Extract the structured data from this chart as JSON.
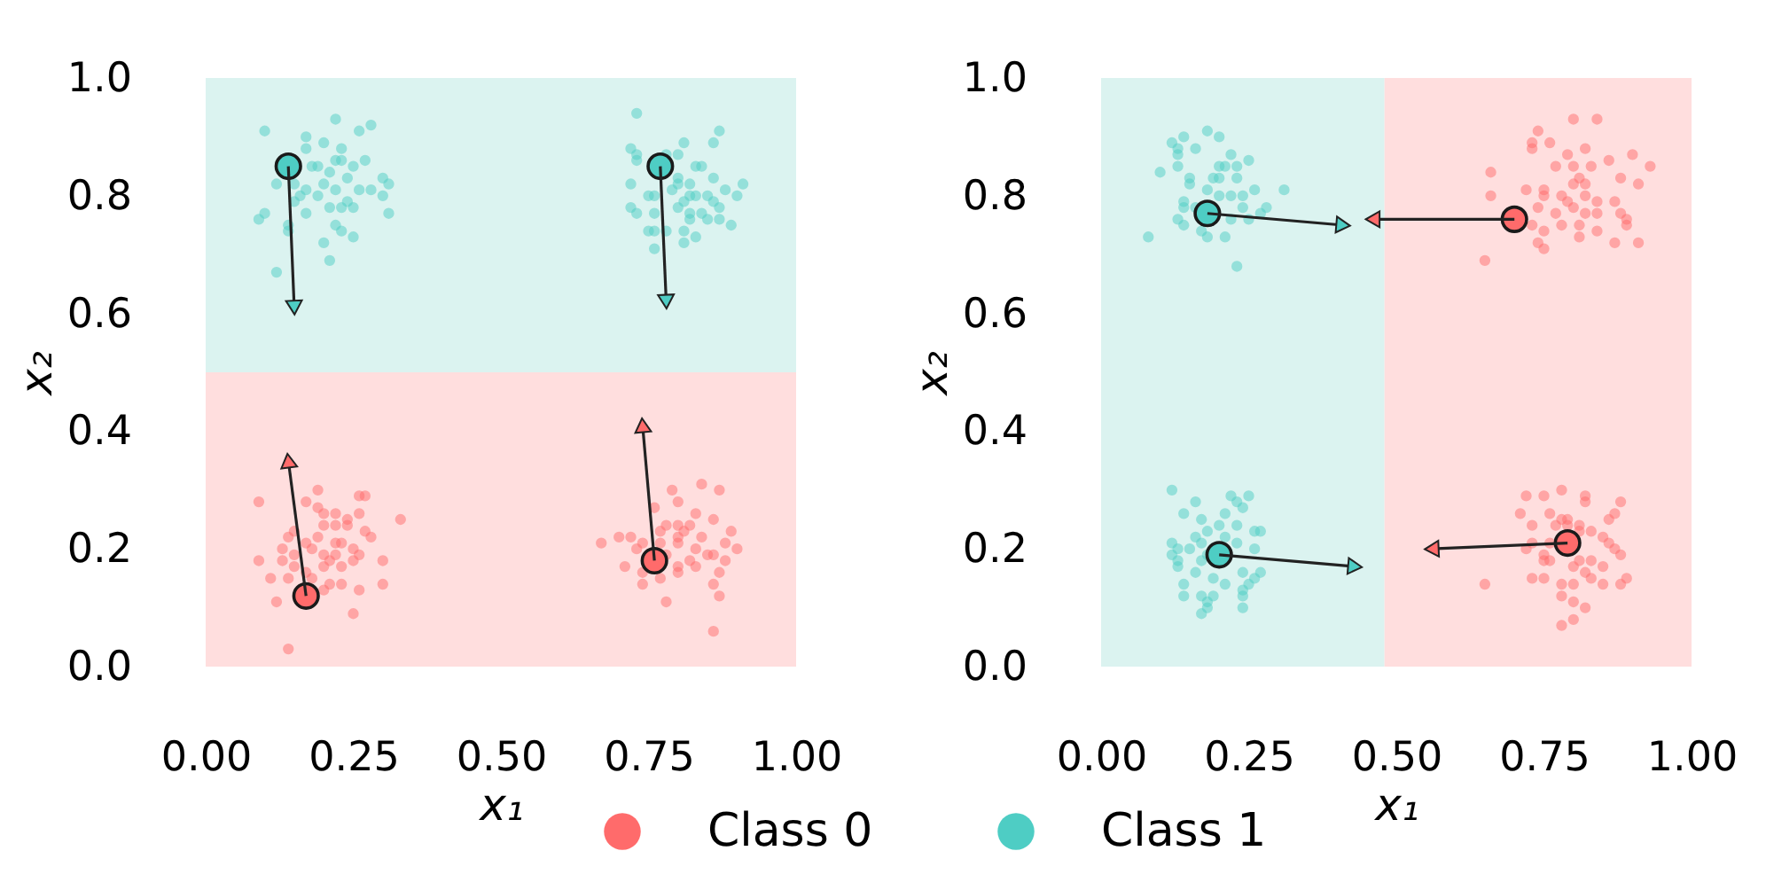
{
  "chart_data": [
    {
      "type": "scatter",
      "xlabel": "x₁",
      "ylabel": "x₂",
      "xlim": [
        0,
        1
      ],
      "ylim": [
        0,
        1
      ],
      "xticks": [
        {
          "value": 0,
          "label": "0.00"
        },
        {
          "value": 0.25,
          "label": "0.25"
        },
        {
          "value": 0.5,
          "label": "0.50"
        },
        {
          "value": 0.75,
          "label": "0.75"
        },
        {
          "value": 1,
          "label": "1.00"
        }
      ],
      "yticks": [
        {
          "value": 0,
          "label": "0.0"
        },
        {
          "value": 0.2,
          "label": "0.2"
        },
        {
          "value": 0.4,
          "label": "0.4"
        },
        {
          "value": 0.6,
          "label": "0.6"
        },
        {
          "value": 0.8,
          "label": "0.8"
        },
        {
          "value": 1,
          "label": "1.0"
        }
      ],
      "grid": false,
      "legend": "bottom",
      "marker": "circle",
      "bands": [
        {
          "axis": "y",
          "from": 0,
          "to": 0.5,
          "color": "#ffdede"
        },
        {
          "axis": "y",
          "from": 0.5,
          "to": 1,
          "color": "#dbf3f0"
        }
      ],
      "series": [
        {
          "name": "Class 0",
          "color": "#ff6b6b",
          "x": [
            0.09,
            0.17,
            0.19,
            0.19,
            0.2,
            0.22,
            0.24,
            0.26,
            0.27,
            0.26,
            0.33,
            0.15,
            0.2,
            0.22,
            0.24,
            0.27,
            0.28,
            0.14,
            0.17,
            0.19,
            0.22,
            0.23,
            0.25,
            0.13,
            0.18,
            0.2,
            0.22,
            0.25,
            0.26,
            0.3,
            0.09,
            0.13,
            0.15,
            0.17,
            0.2,
            0.23,
            0.11,
            0.14,
            0.18,
            0.21,
            0.23,
            0.3,
            0.12,
            0.2,
            0.26,
            0.25,
            0.14,
            0.15,
            0.21,
            0.79,
            0.84,
            0.87,
            0.8,
            0.76,
            0.83,
            0.86,
            0.78,
            0.8,
            0.82,
            0.67,
            0.7,
            0.72,
            0.74,
            0.77,
            0.8,
            0.81,
            0.84,
            0.89,
            0.88,
            0.9,
            0.77,
            0.8,
            0.83,
            0.85,
            0.86,
            0.73,
            0.71,
            0.74,
            0.8,
            0.82,
            0.88,
            0.87,
            0.74,
            0.77,
            0.8,
            0.83,
            0.86,
            0.87,
            0.78,
            0.86,
            0.78
          ],
          "values": [
            0.28,
            0.28,
            0.3,
            0.27,
            0.26,
            0.26,
            0.25,
            0.29,
            0.29,
            0.26,
            0.25,
            0.23,
            0.24,
            0.24,
            0.24,
            0.23,
            0.22,
            0.22,
            0.21,
            0.22,
            0.21,
            0.21,
            0.2,
            0.2,
            0.2,
            0.19,
            0.19,
            0.18,
            0.19,
            0.18,
            0.18,
            0.18,
            0.17,
            0.16,
            0.17,
            0.17,
            0.15,
            0.15,
            0.15,
            0.14,
            0.14,
            0.14,
            0.11,
            0.13,
            0.13,
            0.09,
            0.03,
            0.19,
            0.18,
            0.3,
            0.31,
            0.3,
            0.28,
            0.27,
            0.26,
            0.25,
            0.24,
            0.24,
            0.24,
            0.21,
            0.22,
            0.22,
            0.21,
            0.23,
            0.22,
            0.23,
            0.22,
            0.23,
            0.21,
            0.2,
            0.21,
            0.21,
            0.2,
            0.19,
            0.19,
            0.2,
            0.17,
            0.16,
            0.17,
            0.18,
            0.18,
            0.16,
            0.14,
            0.15,
            0.16,
            0.17,
            0.14,
            0.12,
            0.11,
            0.06,
            0.19
          ]
        },
        {
          "name": "Class 1",
          "color": "#4ecdc4",
          "x": [
            0.1,
            0.22,
            0.28,
            0.26,
            0.17,
            0.2,
            0.17,
            0.23,
            0.27,
            0.18,
            0.22,
            0.23,
            0.25,
            0.12,
            0.19,
            0.21,
            0.24,
            0.3,
            0.31,
            0.15,
            0.17,
            0.2,
            0.22,
            0.26,
            0.28,
            0.3,
            0.1,
            0.09,
            0.15,
            0.17,
            0.19,
            0.21,
            0.23,
            0.25,
            0.31,
            0.14,
            0.14,
            0.2,
            0.23,
            0.25,
            0.21,
            0.12,
            0.22,
            0.24,
            0.16,
            0.73,
            0.87,
            0.86,
            0.81,
            0.72,
            0.73,
            0.8,
            0.78,
            0.73,
            0.83,
            0.84,
            0.86,
            0.91,
            0.72,
            0.8,
            0.8,
            0.79,
            0.82,
            0.88,
            0.82,
            0.83,
            0.85,
            0.86,
            0.9,
            0.75,
            0.76,
            0.81,
            0.82,
            0.84,
            0.87,
            0.72,
            0.73,
            0.76,
            0.8,
            0.82,
            0.85,
            0.87,
            0.89,
            0.75,
            0.76,
            0.78,
            0.81,
            0.83,
            0.81,
            0.76
          ],
          "values": [
            0.91,
            0.93,
            0.92,
            0.91,
            0.9,
            0.89,
            0.88,
            0.88,
            0.86,
            0.85,
            0.86,
            0.86,
            0.85,
            0.82,
            0.85,
            0.84,
            0.83,
            0.83,
            0.82,
            0.82,
            0.81,
            0.82,
            0.81,
            0.81,
            0.81,
            0.8,
            0.77,
            0.76,
            0.79,
            0.77,
            0.8,
            0.78,
            0.78,
            0.78,
            0.77,
            0.75,
            0.74,
            0.72,
            0.74,
            0.73,
            0.69,
            0.67,
            0.75,
            0.79,
            0.8,
            0.94,
            0.91,
            0.89,
            0.89,
            0.88,
            0.87,
            0.87,
            0.87,
            0.86,
            0.85,
            0.85,
            0.83,
            0.82,
            0.82,
            0.83,
            0.82,
            0.81,
            0.82,
            0.81,
            0.8,
            0.8,
            0.8,
            0.79,
            0.8,
            0.8,
            0.8,
            0.79,
            0.77,
            0.77,
            0.78,
            0.78,
            0.77,
            0.77,
            0.78,
            0.76,
            0.76,
            0.76,
            0.75,
            0.74,
            0.74,
            0.74,
            0.74,
            0.73,
            0.72,
            0.71
          ]
        },
        {
          "type": "bubble",
          "x": [
            0.17,
            0.76,
            0.14,
            0.77
          ],
          "values": [
            0.12,
            0.18,
            0.85,
            0.85
          ],
          "sizes": [
            1,
            1,
            1,
            1
          ],
          "colors": [
            "#ff6b6b",
            "#ff6b6b",
            "#4ecdc4",
            "#4ecdc4"
          ]
        },
        {
          "type": "line",
          "color": "#222222",
          "marker": "triangle",
          "colors": [
            null,
            "#4ecdc4"
          ],
          "x": [
            0.14,
            0.15
          ],
          "values": [
            0.85,
            0.61
          ]
        },
        {
          "type": "line",
          "color": "#222222",
          "marker": "triangle",
          "colors": [
            null,
            "#4ecdc4"
          ],
          "x": [
            0.77,
            0.78
          ],
          "values": [
            0.85,
            0.62
          ]
        },
        {
          "type": "line",
          "color": "#222222",
          "marker": "triangle",
          "colors": [
            null,
            "#ff6b6b"
          ],
          "x": [
            0.17,
            0.14
          ],
          "values": [
            0.12,
            0.35
          ]
        },
        {
          "type": "line",
          "color": "#222222",
          "marker": "triangle",
          "colors": [
            null,
            "#ff6b6b"
          ],
          "x": [
            0.76,
            0.74
          ],
          "values": [
            0.18,
            0.41
          ]
        }
      ]
    },
    {
      "type": "scatter",
      "xlabel": "x₁",
      "ylabel": "x₂",
      "xlim": [
        0,
        1
      ],
      "ylim": [
        0,
        1
      ],
      "xticks": [
        {
          "value": 0,
          "label": "0.00"
        },
        {
          "value": 0.25,
          "label": "0.25"
        },
        {
          "value": 0.5,
          "label": "0.50"
        },
        {
          "value": 0.75,
          "label": "0.75"
        },
        {
          "value": 1,
          "label": "1.00"
        }
      ],
      "yticks": [
        {
          "value": 0,
          "label": "0.0"
        },
        {
          "value": 0.2,
          "label": "0.2"
        },
        {
          "value": 0.4,
          "label": "0.4"
        },
        {
          "value": 0.6,
          "label": "0.6"
        },
        {
          "value": 0.8,
          "label": "0.8"
        },
        {
          "value": 1,
          "label": "1.0"
        }
      ],
      "grid": false,
      "marker": "circle",
      "bands": [
        {
          "axis": "x",
          "from": 0,
          "to": 0.48,
          "color": "#dbf3f0"
        },
        {
          "axis": "x",
          "from": 0.48,
          "to": 1,
          "color": "#ffdede"
        }
      ],
      "series": [
        {
          "color": "#ff6b6b",
          "x": [
            0.8,
            0.84,
            0.74,
            0.73,
            0.73,
            0.76,
            0.82,
            0.79,
            0.9,
            0.66,
            0.77,
            0.8,
            0.83,
            0.86,
            0.93,
            0.81,
            0.82,
            0.88,
            0.91,
            0.66,
            0.72,
            0.75,
            0.75,
            0.78,
            0.79,
            0.82,
            0.84,
            0.87,
            0.74,
            0.77,
            0.8,
            0.82,
            0.84,
            0.88,
            0.89,
            0.73,
            0.75,
            0.78,
            0.81,
            0.84,
            0.89,
            0.81,
            0.91,
            0.87,
            0.74,
            0.75,
            0.65,
            0.8,
            0.78,
            0.72,
            0.75,
            0.82,
            0.82,
            0.88,
            0.71,
            0.86,
            0.87,
            0.76,
            0.78,
            0.79,
            0.73,
            0.77,
            0.79,
            0.81,
            0.81,
            0.83,
            0.85,
            0.86,
            0.87,
            0.73,
            0.76,
            0.72,
            0.75,
            0.75,
            0.76,
            0.81,
            0.83,
            0.85,
            0.8,
            0.82,
            0.83,
            0.73,
            0.75,
            0.78,
            0.8,
            0.85,
            0.88,
            0.89,
            0.78,
            0.8,
            0.82,
            0.78,
            0.8,
            0.65,
            0.88
          ],
          "values": [
            0.93,
            0.93,
            0.91,
            0.89,
            0.88,
            0.89,
            0.88,
            0.87,
            0.87,
            0.84,
            0.85,
            0.85,
            0.85,
            0.86,
            0.85,
            0.83,
            0.82,
            0.83,
            0.82,
            0.8,
            0.81,
            0.81,
            0.8,
            0.8,
            0.79,
            0.8,
            0.79,
            0.79,
            0.78,
            0.77,
            0.78,
            0.77,
            0.77,
            0.77,
            0.76,
            0.75,
            0.74,
            0.75,
            0.75,
            0.74,
            0.75,
            0.73,
            0.72,
            0.72,
            0.72,
            0.71,
            0.69,
            0.82,
            0.3,
            0.29,
            0.29,
            0.29,
            0.28,
            0.28,
            0.26,
            0.25,
            0.26,
            0.26,
            0.25,
            0.25,
            0.24,
            0.24,
            0.24,
            0.24,
            0.23,
            0.23,
            0.22,
            0.21,
            0.2,
            0.21,
            0.21,
            0.2,
            0.19,
            0.18,
            0.18,
            0.18,
            0.18,
            0.17,
            0.17,
            0.16,
            0.15,
            0.15,
            0.15,
            0.14,
            0.14,
            0.14,
            0.14,
            0.15,
            0.12,
            0.11,
            0.1,
            0.07,
            0.08,
            0.14,
            0.19
          ]
        },
        {
          "color": "#4ecdc4",
          "x": [
            0.14,
            0.18,
            0.2,
            0.12,
            0.13,
            0.16,
            0.13,
            0.13,
            0.1,
            0.15,
            0.22,
            0.2,
            0.21,
            0.23,
            0.25,
            0.19,
            0.2,
            0.23,
            0.26,
            0.31,
            0.15,
            0.18,
            0.2,
            0.24,
            0.14,
            0.16,
            0.22,
            0.24,
            0.28,
            0.27,
            0.13,
            0.14,
            0.17,
            0.18,
            0.21,
            0.22,
            0.25,
            0.08,
            0.23,
            0.14,
            0.12,
            0.16,
            0.22,
            0.23,
            0.25,
            0.14,
            0.21,
            0.17,
            0.2,
            0.24,
            0.23,
            0.26,
            0.27,
            0.16,
            0.18,
            0.21,
            0.23,
            0.12,
            0.13,
            0.15,
            0.17,
            0.26,
            0.12,
            0.13,
            0.17,
            0.18,
            0.13,
            0.16,
            0.19,
            0.24,
            0.26,
            0.27,
            0.14,
            0.21,
            0.24,
            0.25,
            0.14,
            0.17,
            0.19,
            0.24,
            0.18,
            0.17,
            0.24,
            0.18
          ],
          "values": [
            0.9,
            0.91,
            0.9,
            0.89,
            0.88,
            0.88,
            0.87,
            0.85,
            0.84,
            0.83,
            0.87,
            0.85,
            0.85,
            0.85,
            0.86,
            0.83,
            0.83,
            0.83,
            0.81,
            0.81,
            0.82,
            0.81,
            0.8,
            0.8,
            0.79,
            0.78,
            0.8,
            0.78,
            0.78,
            0.77,
            0.76,
            0.75,
            0.74,
            0.73,
            0.73,
            0.76,
            0.76,
            0.73,
            0.68,
            0.78,
            0.3,
            0.28,
            0.29,
            0.28,
            0.29,
            0.26,
            0.26,
            0.25,
            0.24,
            0.27,
            0.24,
            0.23,
            0.23,
            0.22,
            0.23,
            0.22,
            0.21,
            0.21,
            0.2,
            0.2,
            0.21,
            0.2,
            0.19,
            0.18,
            0.18,
            0.19,
            0.17,
            0.16,
            0.15,
            0.16,
            0.15,
            0.16,
            0.14,
            0.14,
            0.13,
            0.14,
            0.12,
            0.12,
            0.12,
            0.12,
            0.1,
            0.09,
            0.1,
            0.11
          ]
        },
        {
          "type": "bubble",
          "x": [
            0.7,
            0.79,
            0.18,
            0.2
          ],
          "values": [
            0.76,
            0.21,
            0.77,
            0.19
          ],
          "sizes": [
            1,
            1,
            1,
            1
          ],
          "colors": [
            "#ff6b6b",
            "#ff6b6b",
            "#4ecdc4",
            "#4ecdc4"
          ]
        },
        {
          "type": "line",
          "color": "#222222",
          "marker": "triangle",
          "colors": [
            null,
            "#4ecdc4"
          ],
          "x": [
            0.18,
            0.41
          ],
          "values": [
            0.77,
            0.75
          ]
        },
        {
          "type": "line",
          "color": "#222222",
          "marker": "triangle",
          "colors": [
            null,
            "#ff6b6b"
          ],
          "x": [
            0.7,
            0.46
          ],
          "values": [
            0.76,
            0.76
          ]
        },
        {
          "type": "line",
          "color": "#222222",
          "marker": "triangle",
          "colors": [
            null,
            "#4ecdc4"
          ],
          "x": [
            0.2,
            0.43
          ],
          "values": [
            0.19,
            0.17
          ]
        },
        {
          "type": "line",
          "color": "#222222",
          "marker": "triangle",
          "colors": [
            null,
            "#ff6b6b"
          ],
          "x": [
            0.79,
            0.56
          ],
          "values": [
            0.21,
            0.2
          ]
        }
      ]
    }
  ]
}
